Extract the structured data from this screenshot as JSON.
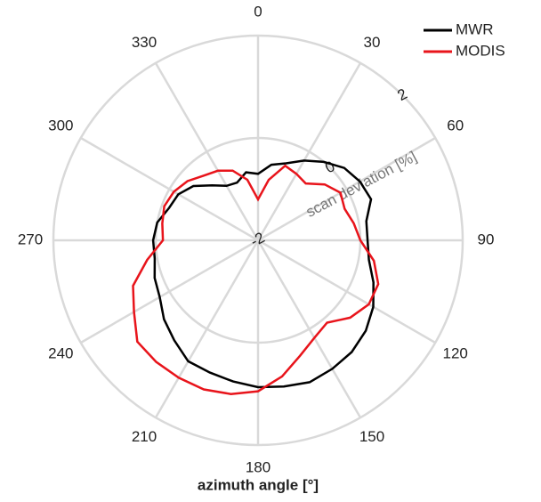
{
  "chart_data": {
    "type": "polar-line",
    "theta": [
      0,
      10,
      20,
      30,
      40,
      50,
      60,
      70,
      80,
      90,
      100,
      110,
      120,
      130,
      140,
      150,
      160,
      170,
      180,
      190,
      200,
      210,
      220,
      230,
      240,
      250,
      260,
      270,
      280,
      290,
      300,
      310,
      320,
      330,
      340,
      350
    ],
    "series": [
      {
        "name": "MWR",
        "color": "#000000",
        "values": [
          -0.7,
          -0.5,
          -0.4,
          -0.2,
          0.0,
          0.2,
          0.3,
          0.35,
          0.15,
          0.14,
          0.2,
          0.4,
          0.6,
          0.75,
          0.85,
          0.9,
          0.95,
          0.9,
          0.87,
          0.8,
          0.75,
          0.73,
          0.55,
          0.4,
          0.22,
          0.15,
          0.05,
          0.05,
          0.0,
          -0.15,
          -0.2,
          -0.35,
          -0.6,
          -0.77,
          -0.8,
          -0.65
        ]
      },
      {
        "name": "MODIS",
        "color": "#e8141b",
        "values": [
          -1.2,
          -0.8,
          -0.45,
          -0.5,
          -0.55,
          -0.3,
          -0.14,
          -0.2,
          -0.1,
          0.0,
          0.3,
          0.5,
          0.5,
          0.35,
          0.1,
          0.2,
          0.4,
          0.7,
          0.95,
          1.05,
          1.1,
          1.1,
          1.1,
          1.08,
          0.8,
          0.6,
          0.2,
          -0.14,
          -0.1,
          -0.05,
          -0.1,
          -0.2,
          -0.35,
          -0.43,
          -0.55,
          -0.8
        ]
      }
    ],
    "thetaticks": [
      0,
      30,
      60,
      90,
      120,
      150,
      180,
      210,
      240,
      270,
      300,
      330
    ],
    "rlim": [
      -2,
      2
    ],
    "rticks": [
      -2,
      0,
      2
    ],
    "r_label": "scan deviation [%]",
    "theta_label": "azimuth angle [°]",
    "grid": true,
    "legend": "upper right"
  }
}
